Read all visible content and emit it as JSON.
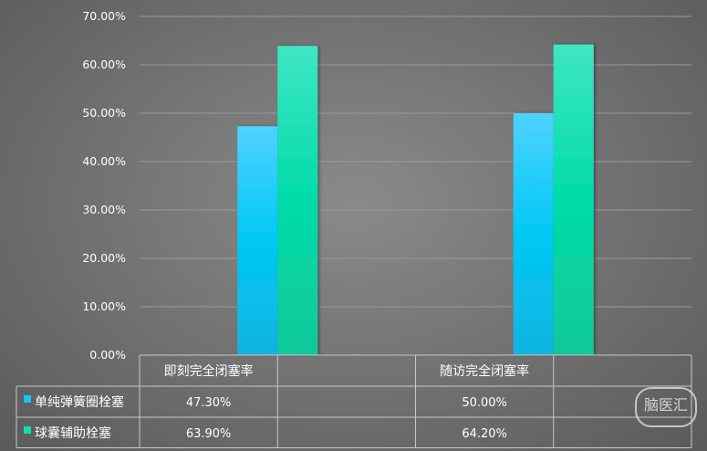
{
  "chart_data": {
    "type": "bar",
    "categories": [
      "即刻完全闭塞率",
      "随访完全闭塞率"
    ],
    "series": [
      {
        "name": "单纯弹簧圈栓塞",
        "values": [
          47.3,
          50.0
        ],
        "labels": [
          "47.30%",
          "50.00%"
        ],
        "color": "#12c8f0"
      },
      {
        "name": "球囊辅助栓塞",
        "values": [
          63.9,
          64.2
        ],
        "labels": [
          "63.90%",
          "64.20%"
        ],
        "color": "#10e0b0"
      }
    ],
    "y_ticks": [
      "0.00%",
      "10.00%",
      "20.00%",
      "30.00%",
      "40.00%",
      "50.00%",
      "60.00%",
      "70.00%"
    ],
    "ylim": [
      0,
      70
    ],
    "grid": true,
    "legend": "data-table"
  },
  "watermark": {
    "text": "脑医汇"
  }
}
